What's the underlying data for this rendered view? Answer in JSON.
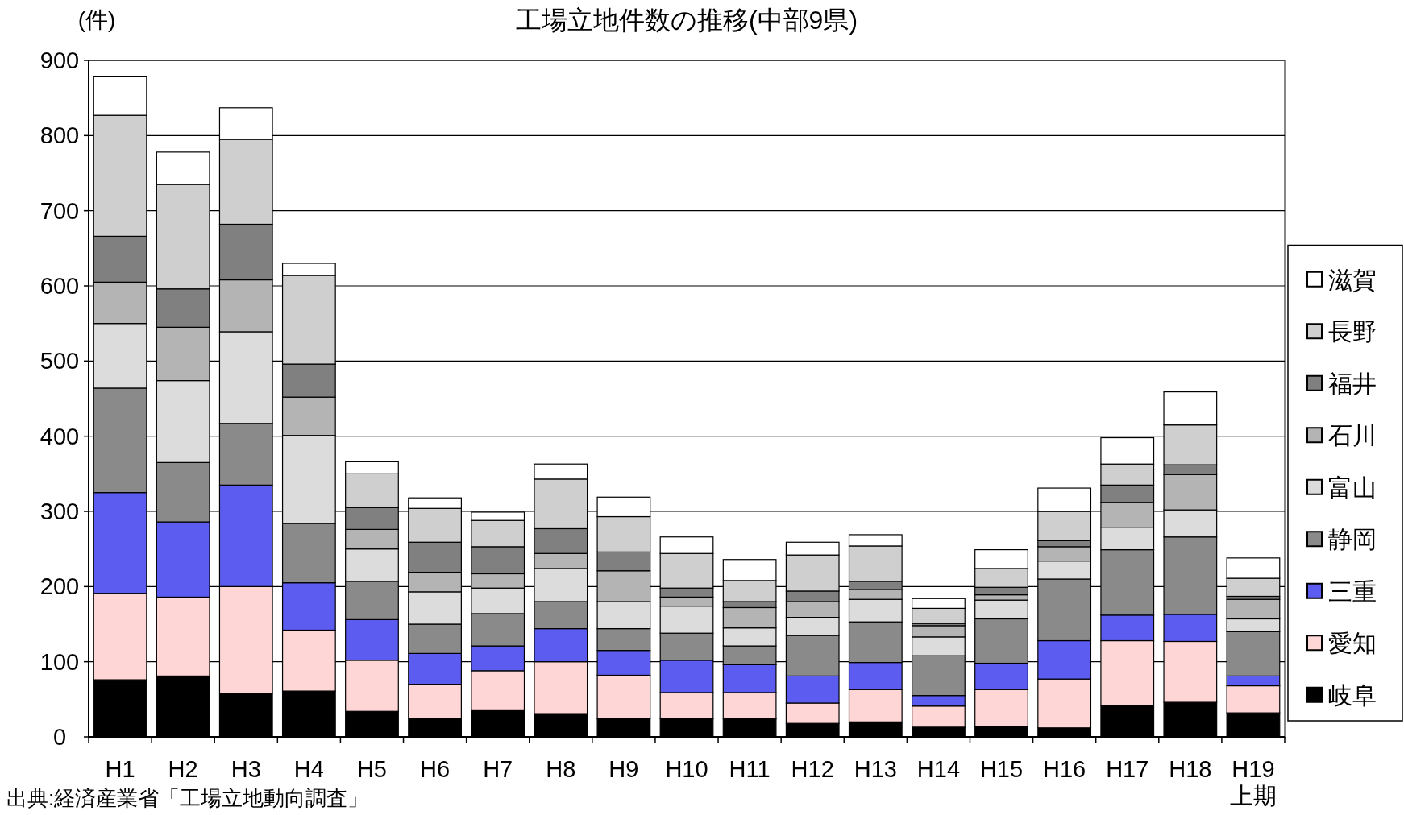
{
  "chart_data": {
    "type": "bar",
    "stacked": true,
    "title": "工場立地件数の推移(中部9県)",
    "ylabel": "(件)",
    "categories": [
      "H1",
      "H2",
      "H3",
      "H4",
      "H5",
      "H6",
      "H7",
      "H8",
      "H9",
      "H10",
      "H11",
      "H12",
      "H13",
      "H14",
      "H15",
      "H16",
      "H17",
      "H18",
      "H19\n上期"
    ],
    "series": [
      {
        "name": "岐阜",
        "color": "#000000",
        "values": [
          76,
          81,
          58,
          61,
          34,
          25,
          36,
          31,
          24,
          24,
          24,
          18,
          20,
          13,
          14,
          12,
          42,
          46,
          32
        ]
      },
      {
        "name": "愛知",
        "color": "#ffd6d6",
        "values": [
          115,
          105,
          142,
          81,
          68,
          45,
          52,
          69,
          58,
          35,
          35,
          27,
          43,
          28,
          49,
          65,
          86,
          81,
          36
        ]
      },
      {
        "name": "三重",
        "color": "#5c5cf0",
        "values": [
          134,
          100,
          135,
          63,
          54,
          41,
          33,
          44,
          33,
          43,
          37,
          36,
          36,
          14,
          35,
          51,
          34,
          36,
          13
        ]
      },
      {
        "name": "静岡",
        "color": "#8a8a8a",
        "values": [
          139,
          79,
          82,
          79,
          51,
          39,
          43,
          36,
          29,
          36,
          25,
          54,
          54,
          53,
          59,
          82,
          87,
          103,
          59
        ]
      },
      {
        "name": "富山",
        "color": "#dcdcdc",
        "values": [
          86,
          109,
          122,
          117,
          43,
          43,
          34,
          44,
          36,
          36,
          24,
          24,
          30,
          25,
          25,
          24,
          30,
          36,
          17
        ]
      },
      {
        "name": "石川",
        "color": "#b4b4b4",
        "values": [
          55,
          71,
          69,
          51,
          26,
          26,
          19,
          20,
          41,
          12,
          27,
          21,
          13,
          15,
          7,
          19,
          33,
          47,
          26
        ]
      },
      {
        "name": "福井",
        "color": "#808080",
        "values": [
          61,
          51,
          74,
          44,
          29,
          40,
          36,
          33,
          25,
          12,
          8,
          14,
          11,
          3,
          10,
          8,
          23,
          13,
          4
        ]
      },
      {
        "name": "長野",
        "color": "#cfcfcf",
        "values": [
          161,
          139,
          113,
          118,
          45,
          45,
          35,
          66,
          47,
          46,
          28,
          48,
          47,
          20,
          25,
          39,
          28,
          53,
          24
        ]
      },
      {
        "name": "滋賀",
        "color": "#ffffff",
        "values": [
          52,
          43,
          42,
          16,
          16,
          14,
          11,
          20,
          26,
          22,
          28,
          17,
          15,
          13,
          25,
          31,
          35,
          44,
          27
        ]
      }
    ],
    "ylim": [
      0,
      900
    ],
    "yticks": [
      0,
      100,
      200,
      300,
      400,
      500,
      600,
      700,
      800,
      900
    ],
    "grid": "y",
    "legend": "right",
    "annotations": [
      "出典:経済産業省「工場立地動向調査」"
    ]
  }
}
